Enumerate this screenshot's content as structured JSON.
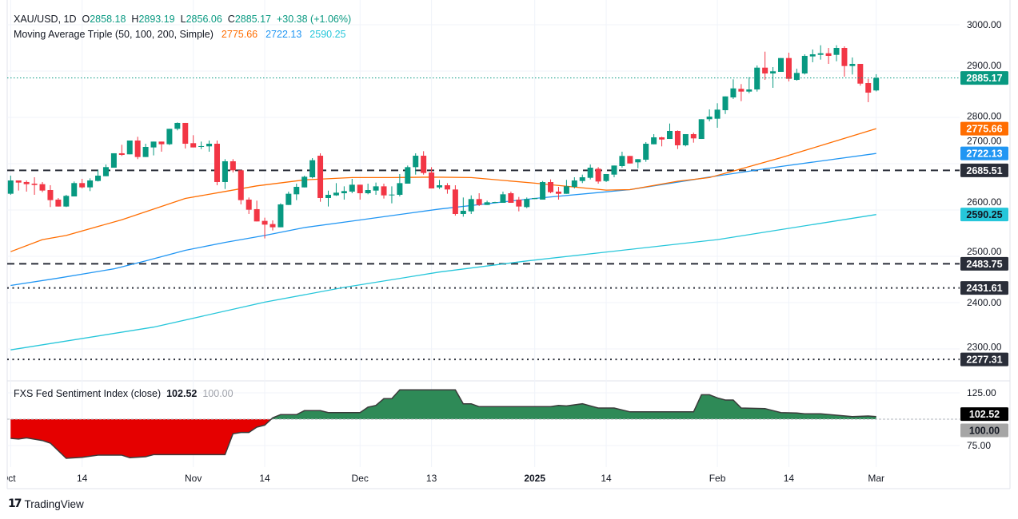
{
  "header": {
    "symbol": "XAU/USD, 1D",
    "o_label": "O",
    "o": "2858.18",
    "h_label": "H",
    "h": "2893.19",
    "l_label": "L",
    "l": "2856.06",
    "c_label": "C",
    "c": "2885.17",
    "change": "+30.38 (+1.06%)"
  },
  "ma_legend": {
    "title": "Moving Average Triple (50, 100, 200, Simple)",
    "values": [
      "2775.66",
      "2722.13",
      "2590.25"
    ]
  },
  "indicator_legend": {
    "title": "FXS Fed Sentiment Index (close)",
    "value": "102.52",
    "baseline": "100.00"
  },
  "footer": {
    "brand": "TradingView",
    "logo_icon": "tradingview-logo-icon"
  },
  "colors": {
    "up": "#089981",
    "down": "#f23645",
    "ma50": "#ff6d00",
    "ma100": "#2196f3",
    "ma200": "#26c6da",
    "level": "#2a2e39",
    "ind_pos": "#2e8a57",
    "ind_neg": "#e50000",
    "grid": "#f0f3fa"
  },
  "chart_data": {
    "type": "candlestick",
    "title": "XAU/USD, 1D",
    "candles_ohlc": [
      [
        2635.1,
        2674.2,
        2632.8,
        2663.8
      ],
      [
        2663.8,
        2663.8,
        2642.0,
        2659.2
      ],
      [
        2660.4,
        2663.8,
        2639.7,
        2655.8
      ],
      [
        2656.9,
        2670.7,
        2632.8,
        2654.1
      ],
      [
        2655.8,
        2660.4,
        2638.5,
        2642.0
      ],
      [
        2643.1,
        2653.5,
        2606.4,
        2621.3
      ],
      [
        2622.4,
        2625.9,
        2607.5,
        2607.5
      ],
      [
        2607.5,
        2632.8,
        2606.4,
        2630.5
      ],
      [
        2629.3,
        2661.5,
        2629.3,
        2658.1
      ],
      [
        2658.1,
        2667.3,
        2646.6,
        2648.9
      ],
      [
        2648.9,
        2668.4,
        2640.8,
        2663.8
      ],
      [
        2662.7,
        2686.8,
        2661.5,
        2674.2
      ],
      [
        2673.0,
        2698.3,
        2673.0,
        2692.6
      ],
      [
        2691.4,
        2722.5,
        2691.4,
        2722.5
      ],
      [
        2722.5,
        2740.8,
        2716.7,
        2719.0
      ],
      [
        2720.2,
        2750.0,
        2720.2,
        2750.0
      ],
      [
        2750.0,
        2758.1,
        2709.8,
        2714.4
      ],
      [
        2714.4,
        2743.1,
        2714.4,
        2736.2
      ],
      [
        2735.1,
        2747.7,
        2717.9,
        2747.7
      ],
      [
        2747.7,
        2747.7,
        2725.9,
        2742.0
      ],
      [
        2742.0,
        2775.3,
        2740.3,
        2775.3
      ],
      [
        2775.3,
        2789.1,
        2771.9,
        2788.0
      ],
      [
        2788.0,
        2788.0,
        2732.8,
        2743.1
      ],
      [
        2744.3,
        2761.5,
        2735.1,
        2735.1
      ],
      [
        2736.8,
        2747.7,
        2731.6,
        2738.0
      ],
      [
        2737.4,
        2750.0,
        2725.9,
        2743.1
      ],
      [
        2743.1,
        2750.0,
        2653.5,
        2660.4
      ],
      [
        2660.4,
        2709.8,
        2645.4,
        2705.2
      ],
      [
        2705.2,
        2709.8,
        2681.1,
        2685.7
      ],
      [
        2685.7,
        2686.8,
        2612.1,
        2621.3
      ],
      [
        2622.4,
        2627.0,
        2591.4,
        2600.6
      ],
      [
        2601.8,
        2620.2,
        2575.3,
        2575.3
      ],
      [
        2576.5,
        2583.4,
        2538.6,
        2568.4
      ],
      [
        2569.6,
        2577.6,
        2555.8,
        2562.7
      ],
      [
        2562.7,
        2614.4,
        2562.7,
        2612.1
      ],
      [
        2610.9,
        2639.7,
        2610.9,
        2635.1
      ],
      [
        2633.9,
        2656.9,
        2621.3,
        2650.0
      ],
      [
        2648.8,
        2674.1,
        2648.8,
        2671.8
      ],
      [
        2670.7,
        2712.1,
        2668.4,
        2707.5
      ],
      [
        2717.2,
        2722.4,
        2617.8,
        2625.9
      ],
      [
        2625.9,
        2641.9,
        2607.5,
        2632.8
      ],
      [
        2631.6,
        2658.0,
        2630.5,
        2637.4
      ],
      [
        2636.2,
        2651.1,
        2622.4,
        2640.8
      ],
      [
        2639.7,
        2667.2,
        2636.2,
        2654.6
      ],
      [
        2654.6,
        2654.6,
        2622.4,
        2636.2
      ],
      [
        2636.2,
        2656.9,
        2633.9,
        2643.1
      ],
      [
        2641.9,
        2659.2,
        2632.8,
        2651.1
      ],
      [
        2651.1,
        2656.9,
        2624.7,
        2631.6
      ],
      [
        2632.2,
        2651.1,
        2614.4,
        2633.3
      ],
      [
        2632.8,
        2677.6,
        2629.3,
        2658.0
      ],
      [
        2656.9,
        2696.0,
        2656.9,
        2692.5
      ],
      [
        2692.5,
        2722.4,
        2676.4,
        2717.2
      ],
      [
        2717.2,
        2727.0,
        2676.4,
        2679.9
      ],
      [
        2681.0,
        2692.5,
        2646.5,
        2646.5
      ],
      [
        2648.8,
        2664.9,
        2645.4,
        2653.4
      ],
      [
        2653.4,
        2658.0,
        2635.1,
        2644.3
      ],
      [
        2644.3,
        2653.4,
        2587.9,
        2591.4
      ],
      [
        2591.4,
        2627.0,
        2585.6,
        2598.3
      ],
      [
        2597.1,
        2631.6,
        2591.4,
        2623.6
      ],
      [
        2623.6,
        2636.2,
        2608.6,
        2610.9
      ],
      [
        2610.9,
        2620.1,
        2610.9,
        2616.7
      ],
      [
        2616.1,
        2617.7,
        2615.0,
        2617.2
      ],
      [
        2615.5,
        2639.7,
        2615.5,
        2633.9
      ],
      [
        2636.2,
        2639.7,
        2615.5,
        2615.5
      ],
      [
        2622.4,
        2628.2,
        2597.1,
        2607.5
      ],
      [
        2606.3,
        2627.0,
        2604.0,
        2623.6
      ],
      [
        2623.6,
        2625.9,
        2623.6,
        2625.9
      ],
      [
        2622.4,
        2662.6,
        2622.4,
        2660.3
      ],
      [
        2660.3,
        2666.1,
        2636.2,
        2638.5
      ],
      [
        2639.7,
        2650.0,
        2622.4,
        2635.0
      ],
      [
        2635.0,
        2665.0,
        2635.0,
        2651.2
      ],
      [
        2650.0,
        2670.7,
        2646.6,
        2663.8
      ],
      [
        2662.6,
        2676.4,
        2658.1,
        2670.7
      ],
      [
        2669.5,
        2698.3,
        2666.0,
        2691.4
      ],
      [
        2689.1,
        2692.6,
        2656.9,
        2661.5
      ],
      [
        2662.6,
        2677.6,
        2660.4,
        2677.6
      ],
      [
        2676.4,
        2696.0,
        2670.7,
        2696.0
      ],
      [
        2694.8,
        2725.9,
        2691.4,
        2716.7
      ],
      [
        2716.7,
        2716.7,
        2700.5,
        2700.5
      ],
      [
        2702.9,
        2709.8,
        2690.2,
        2709.8
      ],
      [
        2708.6,
        2746.6,
        2704.0,
        2743.1
      ],
      [
        2741.9,
        2763.8,
        2741.9,
        2756.9
      ],
      [
        2756.9,
        2758.1,
        2737.4,
        2752.2
      ],
      [
        2753.4,
        2786.7,
        2753.4,
        2770.7
      ],
      [
        2770.7,
        2771.9,
        2731.6,
        2739.7
      ],
      [
        2739.7,
        2763.8,
        2737.4,
        2763.8
      ],
      [
        2763.8,
        2767.2,
        2745.4,
        2754.6
      ],
      [
        2753.4,
        2796.0,
        2753.4,
        2796.0
      ],
      [
        2796.0,
        2817.2,
        2791.4,
        2801.7
      ],
      [
        2797.1,
        2830.5,
        2777.6,
        2816.7
      ],
      [
        2815.5,
        2845.3,
        2807.4,
        2845.3
      ],
      [
        2843.1,
        2882.2,
        2839.7,
        2862.6
      ],
      [
        2861.6,
        2871.9,
        2835.0,
        2855.7
      ],
      [
        2855.7,
        2886.7,
        2852.2,
        2860.3
      ],
      [
        2860.3,
        2912.1,
        2855.7,
        2907.4
      ],
      [
        2907.4,
        2941.9,
        2881.0,
        2894.8
      ],
      [
        2894.8,
        2908.6,
        2863.8,
        2899.5
      ],
      [
        2898.3,
        2928.1,
        2898.3,
        2928.1
      ],
      [
        2928.1,
        2939.7,
        2877.6,
        2883.3
      ],
      [
        2881.0,
        2905.2,
        2879.3,
        2896.0
      ],
      [
        2894.8,
        2936.2,
        2892.6,
        2932.8
      ],
      [
        2931.6,
        2946.6,
        2919.0,
        2936.2
      ],
      [
        2935.0,
        2955.7,
        2924.7,
        2938.4
      ],
      [
        2938.4,
        2950.0,
        2915.5,
        2932.8
      ],
      [
        2935.0,
        2955.7,
        2921.2,
        2950.0
      ],
      [
        2950.0,
        2953.4,
        2887.9,
        2910.9
      ],
      [
        2910.9,
        2929.3,
        2892.6,
        2915.5
      ],
      [
        2915.5,
        2915.5,
        2868.5,
        2872.9
      ],
      [
        2874.1,
        2883.3,
        2832.8,
        2853.4
      ],
      [
        2858.18,
        2893.19,
        2856.06,
        2885.17
      ]
    ],
    "moving_averages": [
      {
        "name": "SMA 50",
        "color_key": "ma50",
        "points": [
          [
            0,
            2510
          ],
          [
            4,
            2536
          ],
          [
            7,
            2545
          ],
          [
            14,
            2579
          ],
          [
            22,
            2625
          ],
          [
            27,
            2640
          ],
          [
            31,
            2652
          ],
          [
            37,
            2665
          ],
          [
            43,
            2670
          ],
          [
            48,
            2670
          ],
          [
            53,
            2671
          ],
          [
            58,
            2670
          ],
          [
            66,
            2658
          ],
          [
            75,
            2643
          ],
          [
            78,
            2644
          ],
          [
            84,
            2662
          ],
          [
            88,
            2670
          ],
          [
            91,
            2684
          ],
          [
            97,
            2713
          ],
          [
            102,
            2739
          ],
          [
            109,
            2775.66
          ]
        ]
      },
      {
        "name": "SMA 100",
        "color_key": "ma100",
        "points": [
          [
            0,
            2437
          ],
          [
            6,
            2453
          ],
          [
            13,
            2473
          ],
          [
            17,
            2490
          ],
          [
            22,
            2513
          ],
          [
            27,
            2530
          ],
          [
            32,
            2545
          ],
          [
            37,
            2562
          ],
          [
            43,
            2576
          ],
          [
            48,
            2588
          ],
          [
            54,
            2602
          ],
          [
            66,
            2625
          ],
          [
            78,
            2644
          ],
          [
            88,
            2671
          ],
          [
            97,
            2694
          ],
          [
            109,
            2722.13
          ]
        ]
      },
      {
        "name": "SMA 200",
        "color_key": "ma200",
        "points": [
          [
            0,
            2298
          ],
          [
            18,
            2347
          ],
          [
            32,
            2401
          ],
          [
            42,
            2433
          ],
          [
            54,
            2466
          ],
          [
            65,
            2490
          ],
          [
            89,
            2536
          ],
          [
            109,
            2590.25
          ]
        ]
      }
    ],
    "levels": [
      {
        "value": 2685.51,
        "label": "2685.51",
        "style": "dashed"
      },
      {
        "value": 2483.75,
        "label": "2483.75",
        "style": "dashed"
      },
      {
        "value": 2431.61,
        "label": "2431.61",
        "style": "dotted"
      },
      {
        "value": 2277.31,
        "label": "2277.31",
        "style": "dotted"
      }
    ],
    "last_price": {
      "value": 2885.17,
      "label": "2885.17"
    },
    "ma_price_labels": [
      {
        "value": 2775.66,
        "label": "2775.66",
        "color_key": "ma50"
      },
      {
        "value": 2722.13,
        "label": "2722.13",
        "color_key": "ma100"
      },
      {
        "value": 2590.25,
        "label": "2590.25",
        "color_key": "ma200"
      }
    ],
    "price_axis": {
      "ticks": [
        "3000.00",
        "2900.00",
        "2800.00",
        "2700.00",
        "2600.00",
        "2500.00",
        "2400.00",
        "2300.00"
      ],
      "range": [
        2277,
        3000
      ]
    },
    "time_axis": {
      "labels": [
        {
          "label": "Oct",
          "bar": 0
        },
        {
          "label": "14",
          "bar": 9
        },
        {
          "label": "Nov",
          "bar": 23
        },
        {
          "label": "14",
          "bar": 32
        },
        {
          "label": "Dec",
          "bar": 44
        },
        {
          "label": "13",
          "bar": 53
        },
        {
          "label": "2025",
          "bar": 66,
          "bold": true
        },
        {
          "label": "14",
          "bar": 75
        },
        {
          "label": "Feb",
          "bar": 89
        },
        {
          "label": "14",
          "bar": 98
        },
        {
          "label": "Mar",
          "bar": 109
        }
      ]
    },
    "indicator": {
      "name": "FXS Fed Sentiment Index (close)",
      "baseline": 100,
      "ticks": [
        "125.00",
        "75.00"
      ],
      "value_label": "102.52",
      "baseline_label": "100.00",
      "points": [
        [
          0,
          81.8
        ],
        [
          1,
          81.1
        ],
        [
          2,
          82.3
        ],
        [
          4,
          79.8
        ],
        [
          5,
          77.3
        ],
        [
          7,
          62.9
        ],
        [
          9,
          63.9
        ],
        [
          11,
          65.9
        ],
        [
          14,
          65.9
        ],
        [
          15,
          63.4
        ],
        [
          17,
          64.4
        ],
        [
          18,
          66.4
        ],
        [
          27,
          66.4
        ],
        [
          28,
          86.1
        ],
        [
          29,
          87.4
        ],
        [
          30,
          87.4
        ],
        [
          31,
          92.4
        ],
        [
          32,
          94.4
        ],
        [
          33,
          101.3
        ],
        [
          34,
          104.3
        ],
        [
          36,
          104.3
        ],
        [
          37,
          108.1
        ],
        [
          39,
          108.1
        ],
        [
          40,
          106.3
        ],
        [
          44,
          106.3
        ],
        [
          45,
          111.4
        ],
        [
          46,
          113.1
        ],
        [
          47,
          119.5
        ],
        [
          48,
          119.5
        ],
        [
          49,
          127.8
        ],
        [
          56,
          127.8
        ],
        [
          57,
          114.6
        ],
        [
          58,
          114.6
        ],
        [
          59,
          111.9
        ],
        [
          68,
          111.9
        ],
        [
          69,
          113.1
        ],
        [
          70,
          112.6
        ],
        [
          72,
          114.6
        ],
        [
          74,
          110.6
        ],
        [
          76,
          110.6
        ],
        [
          78,
          107.0
        ],
        [
          86,
          107.0
        ],
        [
          87,
          123.2
        ],
        [
          88,
          123.2
        ],
        [
          89,
          120.2
        ],
        [
          90,
          118.2
        ],
        [
          91,
          118.2
        ],
        [
          92,
          110.6
        ],
        [
          95,
          110.1
        ],
        [
          97,
          106.3
        ],
        [
          99,
          105.8
        ],
        [
          100,
          105.1
        ],
        [
          102,
          105.1
        ],
        [
          106,
          102.5
        ],
        [
          108,
          103.0
        ],
        [
          109,
          102.52
        ]
      ]
    }
  }
}
